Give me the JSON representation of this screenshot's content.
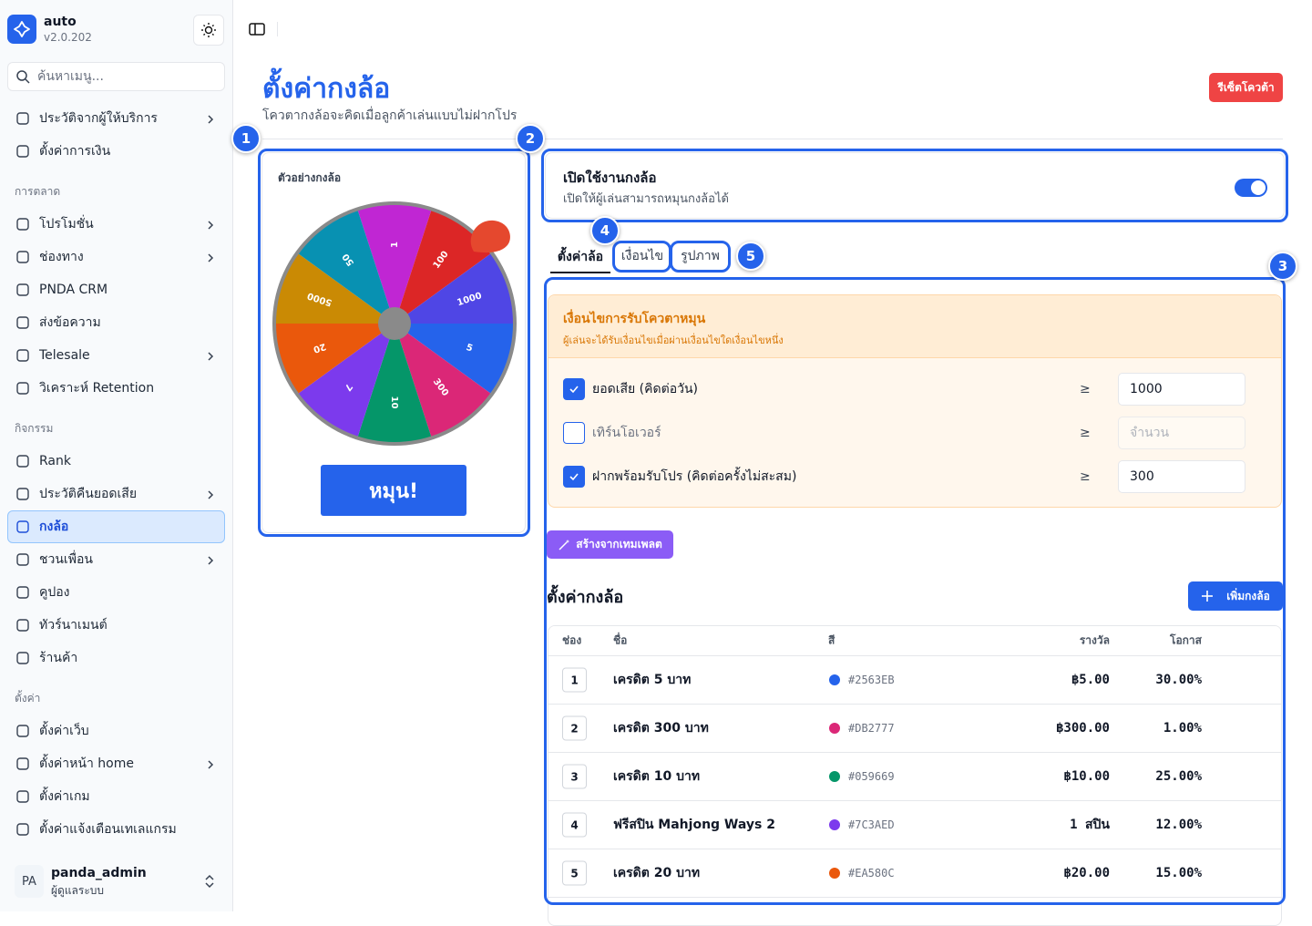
{
  "app": {
    "name": "auto",
    "version": "v2.0.202"
  },
  "sidebar": {
    "search_placeholder": "ค้นหาเมนู...",
    "sections": [
      {
        "items": [
          {
            "label": "ประวัติจากผู้ให้บริการ",
            "has_children": true
          },
          {
            "label": "ตั้งค่าการเงิน",
            "has_children": false
          }
        ]
      },
      {
        "title": "การตลาด",
        "items": [
          {
            "label": "โปรโมชั่น",
            "has_children": true
          },
          {
            "label": "ช่องทาง",
            "has_children": true
          },
          {
            "label": "PNDA CRM",
            "has_children": false
          },
          {
            "label": "ส่งข้อความ",
            "has_children": false
          },
          {
            "label": "Telesale",
            "has_children": true
          },
          {
            "label": "วิเคราะห์ Retention",
            "has_children": false
          }
        ]
      },
      {
        "title": "กิจกรรม",
        "items": [
          {
            "label": "Rank",
            "has_children": false
          },
          {
            "label": "ประวัติคืนยอดเสีย",
            "has_children": true
          },
          {
            "label": "กงล้อ",
            "has_children": false,
            "active": true
          },
          {
            "label": "ชวนเพื่อน",
            "has_children": true
          },
          {
            "label": "คูปอง",
            "has_children": false
          },
          {
            "label": "ทัวร์นาเมนต์",
            "has_children": false
          },
          {
            "label": "ร้านค้า",
            "has_children": false
          }
        ]
      },
      {
        "title": "ตั้งค่า",
        "items": [
          {
            "label": "ตั้งค่าเว็บ",
            "has_children": false
          },
          {
            "label": "ตั้งค่าหน้า home",
            "has_children": true
          },
          {
            "label": "ตั้งค่าเกม",
            "has_children": false
          },
          {
            "label": "ตั้งค่าแจ้งเตือนเทเลแกรม",
            "has_children": false
          }
        ]
      }
    ]
  },
  "user": {
    "initials": "PA",
    "name": "panda_admin",
    "role": "ผู้ดูแลระบบ"
  },
  "header": {
    "title": "ตั้งค่ากงล้อ",
    "subtitle": "โควตากงล้อจะคิดเมื่อลูกค้าเล่นแบบไม่ฝากโปร",
    "reset_button": "รีเซ็ตโควต้า"
  },
  "markers": [
    1,
    2,
    3,
    4,
    5
  ],
  "preview": {
    "title": "ตัวอย่างกงล้อ",
    "segments": [
      {
        "label": "1",
        "color": "#c026d3"
      },
      {
        "label": "100",
        "color": "#dc2626"
      },
      {
        "label": "1000",
        "color": "#4f46e5"
      },
      {
        "label": "5",
        "color": "#2563eb"
      },
      {
        "label": "300",
        "color": "#db2777"
      },
      {
        "label": "10",
        "color": "#059669"
      },
      {
        "label": "7",
        "color": "#7c3aed"
      },
      {
        "label": "20",
        "color": "#ea580c"
      },
      {
        "label": "5000",
        "color": "#ca8a04"
      },
      {
        "label": "50",
        "color": "#0891b2"
      }
    ],
    "spin_button": "หมุน!"
  },
  "enable": {
    "title": "เปิดใช้งานกงล้อ",
    "description": "เปิดให้ผู้เล่นสามารถหมุนกงล้อได้",
    "enabled": true
  },
  "tabs": {
    "items": [
      "ตั้งค่าล้อ",
      "เงื่อนไข",
      "รูปภาพ"
    ],
    "active": 0
  },
  "conditions": {
    "title": "เงื่อนไขการรับโควตาหมุน",
    "description": "ผู้เล่นจะได้รับเงื่อนไขเมื่อผ่านเงื่อนไขใดเงื่อนไขหนึ่ง",
    "rows": [
      {
        "label": "ยอดเสีย (คิดต่อวัน)",
        "checked": true,
        "operator": "≥",
        "value": 1000
      },
      {
        "label": "เทิร์นโอเวอร์",
        "checked": false,
        "operator": "≥",
        "placeholder": "จำนวน"
      },
      {
        "label": "ฝากพร้อมรับโปร (คิดต่อครั้งไม่สะสม)",
        "checked": true,
        "operator": "≥",
        "value": 300
      }
    ]
  },
  "template_button": "สร้างจากเทมเพลต",
  "wheel_table": {
    "title": "ตั้งค่ากงล้อ",
    "add_button": "เพิ่มกงล้อ",
    "columns": [
      "ช่อง",
      "ชื่อ",
      "สี",
      "รางวัล",
      "โอกาส"
    ],
    "rows": [
      {
        "slot": 1,
        "name": "เครดิต 5 บาท",
        "color": "#2563EB",
        "reward": "฿5.00",
        "chance": "30.00%"
      },
      {
        "slot": 2,
        "name": "เครดิต 300 บาท",
        "color": "#DB2777",
        "reward": "฿300.00",
        "chance": "1.00%"
      },
      {
        "slot": 3,
        "name": "เครดิต 10 บาท",
        "color": "#059669",
        "reward": "฿10.00",
        "chance": "25.00%"
      },
      {
        "slot": 4,
        "name": "ฟรีสปิน Mahjong Ways 2",
        "color": "#7C3AED",
        "reward": "1 สปิน",
        "chance": "12.00%"
      },
      {
        "slot": 5,
        "name": "เครดิต 20 บาท",
        "color": "#EA580C",
        "reward": "฿20.00",
        "chance": "15.00%"
      }
    ]
  }
}
